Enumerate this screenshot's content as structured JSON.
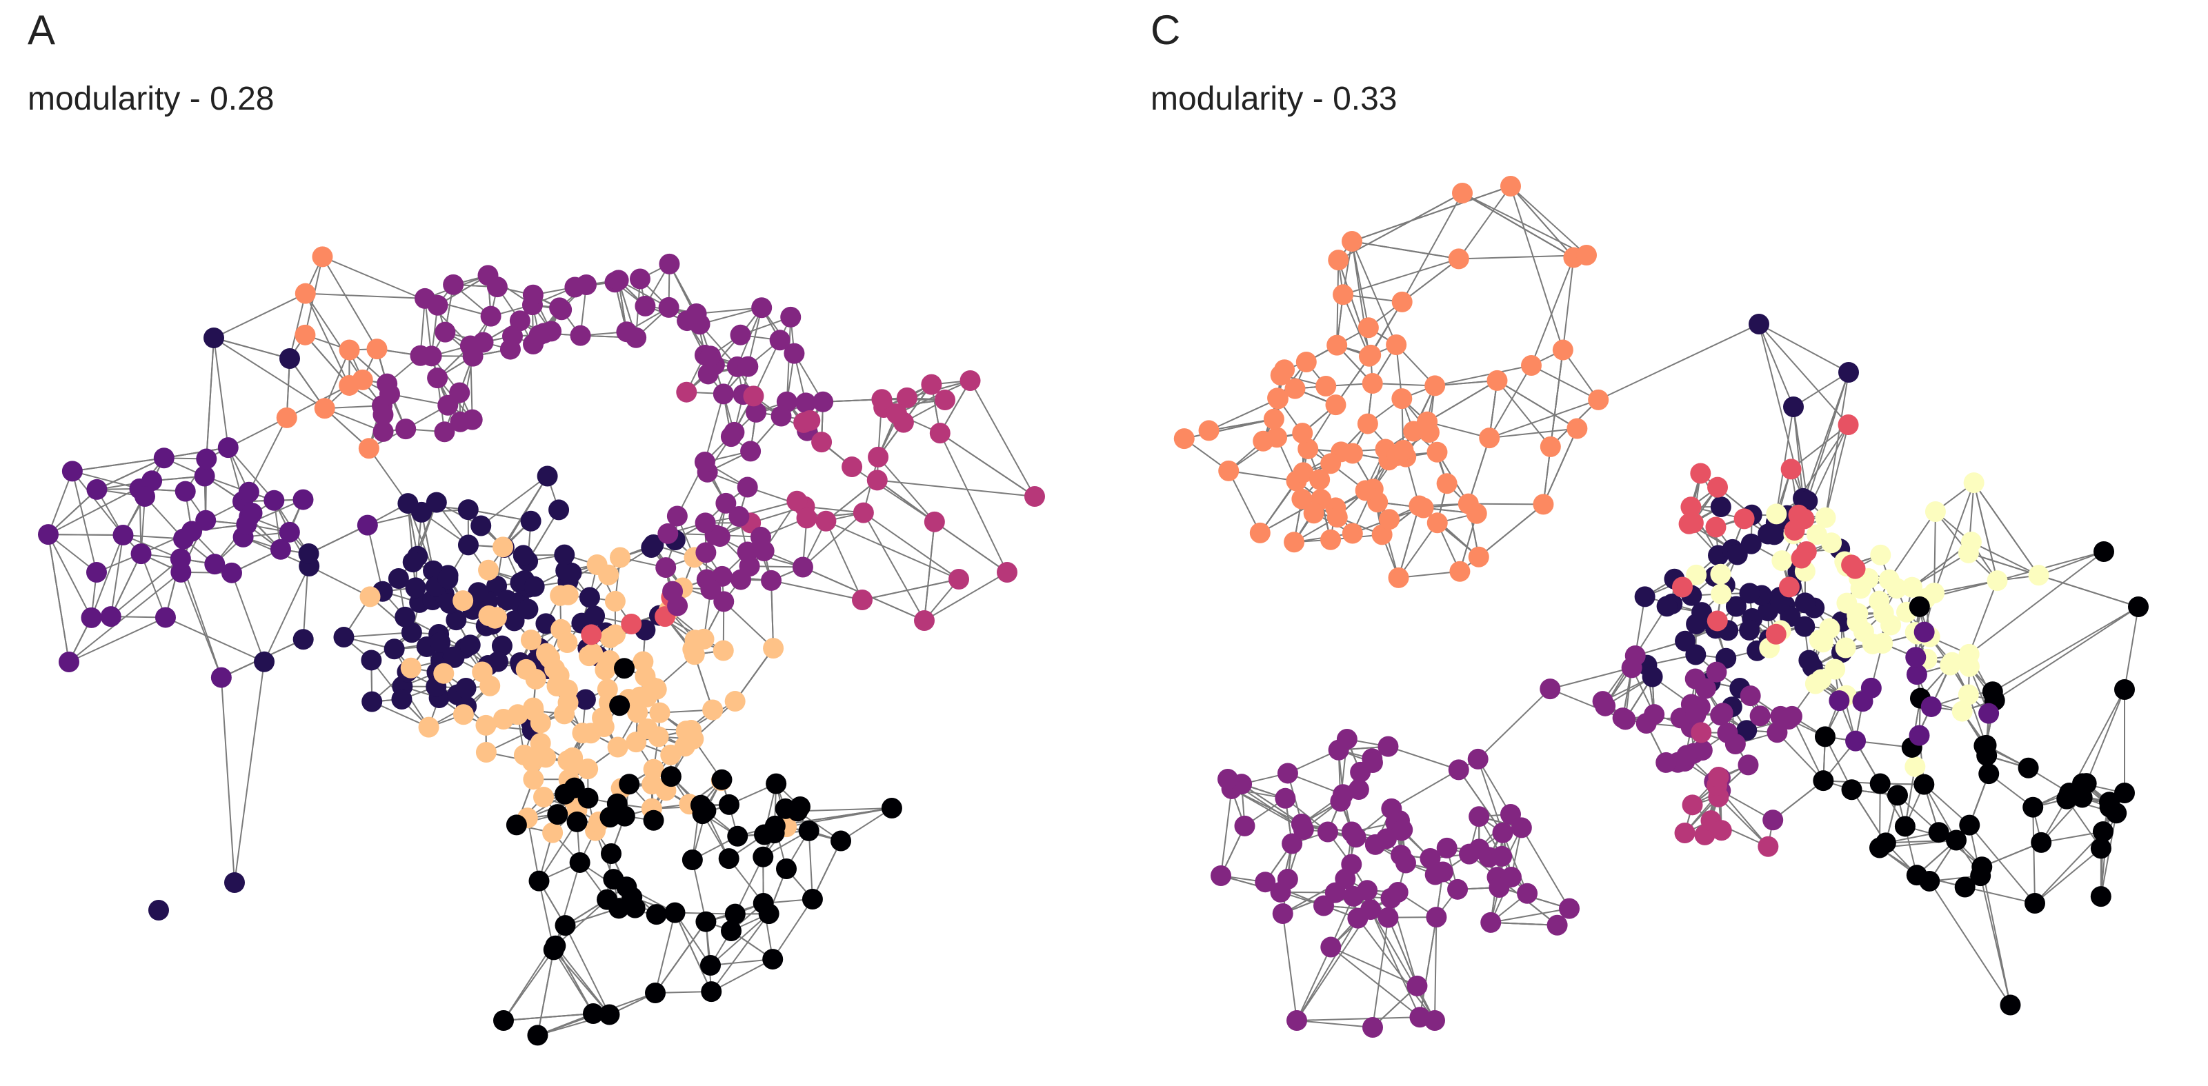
{
  "panels": [
    {
      "letter": "A",
      "modularity": "modularity - 0.28"
    },
    {
      "letter": "C",
      "modularity": "modularity - 0.33"
    }
  ],
  "palette": {
    "community-black": "#000004",
    "community-navy": "#231151",
    "community-violet": "#5f187f",
    "community-purple": "#822681",
    "community-magenta": "#b73779",
    "community-red": "#e75263",
    "community-orange": "#fc8961",
    "community-peach": "#fec287",
    "community-cream": "#fcfdbf",
    "edge": "#7a7a7a"
  }
}
